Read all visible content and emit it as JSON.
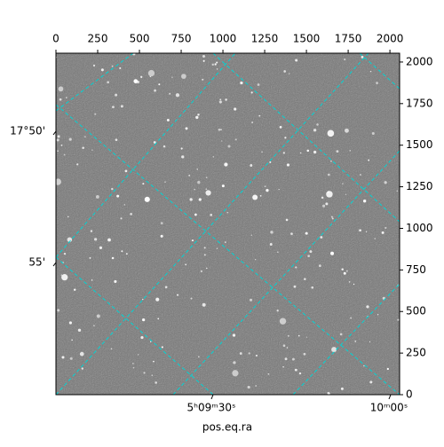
{
  "chart_data": {
    "type": "image",
    "x_label": "pos.eq.ra",
    "xlim": [
      0,
      2058
    ],
    "ylim": [
      0,
      2053
    ],
    "xticks": [
      0,
      250,
      500,
      750,
      1000,
      1250,
      1500,
      1750,
      2000
    ],
    "yticks": [
      0,
      250,
      500,
      750,
      1000,
      1250,
      1500,
      1750,
      2000
    ],
    "ra_ticks": [
      "5ʰ09ᵐ30ˢ",
      "10ᵐ00ˢ"
    ],
    "dec_ticks": [
      "17°50'",
      "55'"
    ],
    "grid_color": "#00d5d5"
  }
}
